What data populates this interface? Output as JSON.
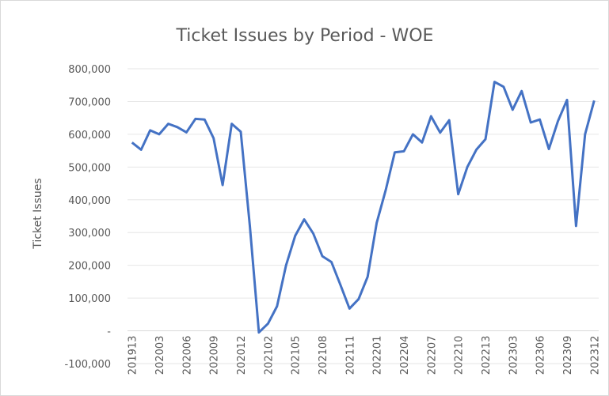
{
  "chart_data": {
    "type": "line",
    "title": "Ticket Issues by Period - WOE",
    "y_label": "Ticket Issues",
    "categories": [
      "201913",
      null,
      null,
      "202003",
      null,
      null,
      "202006",
      null,
      null,
      "202009",
      null,
      null,
      "202012",
      null,
      null,
      "202102",
      null,
      null,
      "202105",
      null,
      null,
      "202108",
      null,
      null,
      "202111",
      null,
      null,
      "202201",
      null,
      null,
      "202204",
      null,
      null,
      "202207",
      null,
      null,
      "202210",
      null,
      null,
      "202213",
      null,
      null,
      "202303",
      null,
      null,
      "202306",
      null,
      null,
      "202309",
      null,
      null,
      "202312"
    ],
    "series": [
      {
        "name": "Ticket Issues",
        "color": "#4472c4",
        "values": [
          575000,
          553000,
          612000,
          600000,
          632000,
          622000,
          606000,
          647000,
          645000,
          588000,
          445000,
          632000,
          608000,
          320000,
          -5000,
          22000,
          75000,
          200000,
          290000,
          340000,
          297000,
          228000,
          210000,
          140000,
          68000,
          97000,
          165000,
          330000,
          430000,
          545000,
          548000,
          600000,
          575000,
          655000,
          605000,
          643000,
          417000,
          500000,
          553000,
          585000,
          760000,
          745000,
          675000,
          732000,
          636000,
          645000,
          555000,
          640000,
          705000,
          320000,
          600000,
          703000
        ]
      }
    ],
    "ylim": [
      -100000,
      800000
    ],
    "yticks": [
      {
        "value": -100000,
        "label": "-100,000"
      },
      {
        "value": 0,
        "label": "-"
      },
      {
        "value": 100000,
        "label": "100,000"
      },
      {
        "value": 200000,
        "label": "200,000"
      },
      {
        "value": 300000,
        "label": "300,000"
      },
      {
        "value": 400000,
        "label": "400,000"
      },
      {
        "value": 500000,
        "label": "500,000"
      },
      {
        "value": 600000,
        "label": "600,000"
      },
      {
        "value": 700000,
        "label": "700,000"
      },
      {
        "value": 800000,
        "label": "800,000"
      }
    ],
    "grid": true
  }
}
